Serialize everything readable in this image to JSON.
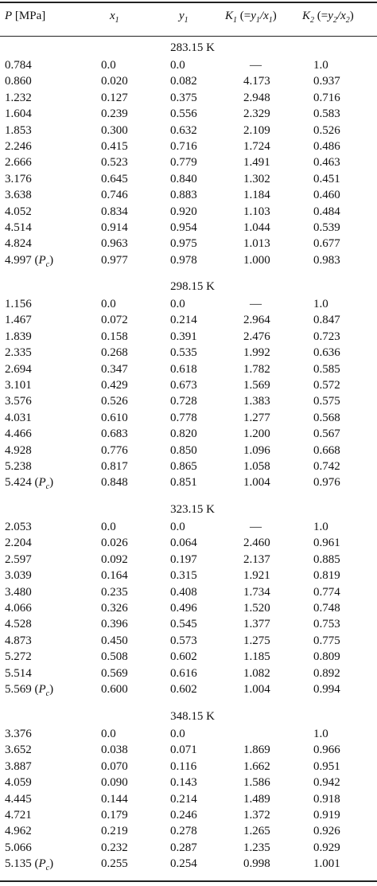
{
  "headers": {
    "p": "P [MPa]",
    "x1": "x1",
    "y1": "y1",
    "k1": "K1 (=y1/x1)",
    "k2": "K2 (=y2/x2)"
  },
  "sections": [
    {
      "temperature": "283.15 K",
      "rows": [
        [
          "0.784",
          "0.0",
          "0.0",
          "—",
          "1.0"
        ],
        [
          "0.860",
          "0.020",
          "0.082",
          "4.173",
          "0.937"
        ],
        [
          "1.232",
          "0.127",
          "0.375",
          "2.948",
          "0.716"
        ],
        [
          "1.604",
          "0.239",
          "0.556",
          "2.329",
          "0.583"
        ],
        [
          "1.853",
          "0.300",
          "0.632",
          "2.109",
          "0.526"
        ],
        [
          "2.246",
          "0.415",
          "0.716",
          "1.724",
          "0.486"
        ],
        [
          "2.666",
          "0.523",
          "0.779",
          "1.491",
          "0.463"
        ],
        [
          "3.176",
          "0.645",
          "0.840",
          "1.302",
          "0.451"
        ],
        [
          "3.638",
          "0.746",
          "0.883",
          "1.184",
          "0.460"
        ],
        [
          "4.052",
          "0.834",
          "0.920",
          "1.103",
          "0.484"
        ],
        [
          "4.514",
          "0.914",
          "0.954",
          "1.044",
          "0.539"
        ],
        [
          "4.824",
          "0.963",
          "0.975",
          "1.013",
          "0.677"
        ],
        [
          "4.997 (Pc)",
          "0.977",
          "0.978",
          "1.000",
          "0.983"
        ]
      ]
    },
    {
      "temperature": "298.15 K",
      "rows": [
        [
          "1.156",
          "0.0",
          "0.0",
          "—",
          "1.0"
        ],
        [
          "1.467",
          "0.072",
          "0.214",
          "2.964",
          "0.847"
        ],
        [
          "1.839",
          "0.158",
          "0.391",
          "2.476",
          "0.723"
        ],
        [
          "2.335",
          "0.268",
          "0.535",
          "1.992",
          "0.636"
        ],
        [
          "2.694",
          "0.347",
          "0.618",
          "1.782",
          "0.585"
        ],
        [
          "3.101",
          "0.429",
          "0.673",
          "1.569",
          "0.572"
        ],
        [
          "3.576",
          "0.526",
          "0.728",
          "1.383",
          "0.575"
        ],
        [
          "4.031",
          "0.610",
          "0.778",
          "1.277",
          "0.568"
        ],
        [
          "4.466",
          "0.683",
          "0.820",
          "1.200",
          "0.567"
        ],
        [
          "4.928",
          "0.776",
          "0.850",
          "1.096",
          "0.668"
        ],
        [
          "5.238",
          "0.817",
          "0.865",
          "1.058",
          "0.742"
        ],
        [
          "5.424 (Pc)",
          "0.848",
          "0.851",
          "1.004",
          "0.976"
        ]
      ]
    },
    {
      "temperature": "323.15 K",
      "rows": [
        [
          "2.053",
          "0.0",
          "0.0",
          "—",
          "1.0"
        ],
        [
          "2.204",
          "0.026",
          "0.064",
          "2.460",
          "0.961"
        ],
        [
          "2.597",
          "0.092",
          "0.197",
          "2.137",
          "0.885"
        ],
        [
          "3.039",
          "0.164",
          "0.315",
          "1.921",
          "0.819"
        ],
        [
          "3.480",
          "0.235",
          "0.408",
          "1.734",
          "0.774"
        ],
        [
          "4.066",
          "0.326",
          "0.496",
          "1.520",
          "0.748"
        ],
        [
          "4.528",
          "0.396",
          "0.545",
          "1.377",
          "0.753"
        ],
        [
          "4.873",
          "0.450",
          "0.573",
          "1.275",
          "0.775"
        ],
        [
          "5.272",
          "0.508",
          "0.602",
          "1.185",
          "0.809"
        ],
        [
          "5.514",
          "0.569",
          "0.616",
          "1.082",
          "0.892"
        ],
        [
          "5.569 (Pc)",
          "0.600",
          "0.602",
          "1.004",
          "0.994"
        ]
      ]
    },
    {
      "temperature": "348.15 K",
      "rows": [
        [
          "3.376",
          "0.0",
          "0.0",
          "",
          "1.0"
        ],
        [
          "3.652",
          "0.038",
          "0.071",
          "1.869",
          "0.966"
        ],
        [
          "3.887",
          "0.070",
          "0.116",
          "1.662",
          "0.951"
        ],
        [
          "4.059",
          "0.090",
          "0.143",
          "1.586",
          "0.942"
        ],
        [
          "4.445",
          "0.144",
          "0.214",
          "1.489",
          "0.918"
        ],
        [
          "4.721",
          "0.179",
          "0.246",
          "1.372",
          "0.919"
        ],
        [
          "4.962",
          "0.219",
          "0.278",
          "1.265",
          "0.926"
        ],
        [
          "5.066",
          "0.232",
          "0.287",
          "1.235",
          "0.929"
        ],
        [
          "5.135 (Pc)",
          "0.255",
          "0.254",
          "0.998",
          "1.001"
        ]
      ]
    }
  ]
}
